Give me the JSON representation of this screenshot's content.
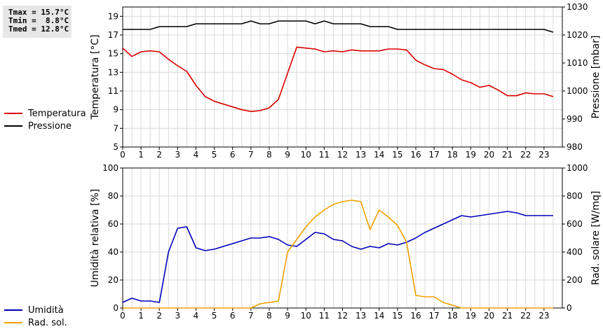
{
  "stats": {
    "tmax": "Tmax = 15.7°C",
    "tmin": "Tmin =  8.8°C",
    "tmed": "Tmed = 12.8°C"
  },
  "legend_top": [
    {
      "label": "Temperatura",
      "color": "#dd0000"
    },
    {
      "label": "Pressione",
      "color": "#000000"
    }
  ],
  "legend_bottom": [
    {
      "label": "Umidità",
      "color": "#0000bb"
    },
    {
      "label": "Rad. sol.",
      "color": "#f0a000"
    }
  ],
  "chart_data": [
    {
      "type": "line",
      "xlim": [
        0,
        24
      ],
      "xticks": [
        0,
        1,
        2,
        3,
        4,
        5,
        6,
        7,
        8,
        9,
        10,
        11,
        12,
        13,
        14,
        15,
        16,
        17,
        18,
        19,
        20,
        21,
        22,
        23
      ],
      "ylabel": "Temperatura [°C]",
      "ylim": [
        5,
        20
      ],
      "yticks": [
        5,
        7,
        9,
        11,
        13,
        15,
        17,
        19
      ],
      "y2label": "Pressione [mbar]",
      "y2lim": [
        980,
        1030
      ],
      "y2ticks": [
        980,
        990,
        1000,
        1010,
        1020,
        1030
      ],
      "grid": true,
      "series": [
        {
          "name": "Temperatura",
          "axis": "left",
          "color": "#dd0000",
          "x": [
            0,
            0.5,
            1,
            1.5,
            2,
            2.5,
            3,
            3.5,
            4,
            4.5,
            5,
            5.5,
            6,
            6.5,
            7,
            7.5,
            8,
            8.5,
            9,
            9.5,
            10,
            10.5,
            11,
            11.5,
            12,
            12.5,
            13,
            13.5,
            14,
            14.5,
            15,
            15.5,
            16,
            16.5,
            17,
            17.5,
            18,
            18.5,
            19,
            19.5,
            20,
            20.5,
            21,
            21.5,
            22,
            22.5,
            23,
            23.5
          ],
          "values": [
            15.6,
            14.7,
            15.2,
            15.3,
            15.2,
            14.4,
            13.7,
            13.1,
            11.6,
            10.4,
            9.9,
            9.6,
            9.3,
            9.0,
            8.8,
            8.9,
            9.2,
            10.1,
            12.9,
            15.7,
            15.6,
            15.5,
            15.2,
            15.3,
            15.2,
            15.4,
            15.3,
            15.3,
            15.3,
            15.5,
            15.5,
            15.4,
            14.3,
            13.8,
            13.4,
            13.3,
            12.8,
            12.2,
            11.9,
            11.4,
            11.6,
            11.1,
            10.5,
            10.5,
            10.8,
            10.7,
            10.7,
            10.4
          ]
        },
        {
          "name": "Pressione",
          "axis": "right",
          "color": "#000000",
          "x": [
            0,
            0.5,
            1,
            1.5,
            2,
            2.5,
            3,
            3.5,
            4,
            4.5,
            5,
            5.5,
            6,
            6.5,
            7,
            7.5,
            8,
            8.5,
            9,
            9.5,
            10,
            10.5,
            11,
            11.5,
            12,
            12.5,
            13,
            13.5,
            14,
            14.5,
            15,
            15.5,
            16,
            16.5,
            17,
            17.5,
            18,
            18.5,
            19,
            19.5,
            20,
            20.5,
            21,
            21.5,
            22,
            22.5,
            23,
            23.5
          ],
          "values": [
            1022,
            1022,
            1022,
            1022,
            1023,
            1023,
            1023,
            1023,
            1024,
            1024,
            1024,
            1024,
            1024,
            1024,
            1025,
            1024,
            1024,
            1025,
            1025,
            1025,
            1025,
            1024,
            1025,
            1024,
            1024,
            1024,
            1024,
            1023,
            1023,
            1023,
            1022,
            1022,
            1022,
            1022,
            1022,
            1022,
            1022,
            1022,
            1022,
            1022,
            1022,
            1022,
            1022,
            1022,
            1022,
            1022,
            1022,
            1021
          ]
        }
      ]
    },
    {
      "type": "line",
      "xlim": [
        0,
        24
      ],
      "xticks": [
        0,
        1,
        2,
        3,
        4,
        5,
        6,
        7,
        8,
        9,
        10,
        11,
        12,
        13,
        14,
        15,
        16,
        17,
        18,
        19,
        20,
        21,
        22,
        23
      ],
      "ylabel": "Umidità relativa [%]",
      "ylim": [
        0,
        100
      ],
      "yticks": [
        0,
        20,
        40,
        60,
        80,
        100
      ],
      "y2label": "Rad. solare [W/mq]",
      "y2lim": [
        0,
        1000
      ],
      "y2ticks": [
        0,
        200,
        400,
        600,
        800,
        1000
      ],
      "grid": true,
      "series": [
        {
          "name": "Umidità",
          "axis": "left",
          "color": "#0000bb",
          "x": [
            0,
            0.5,
            1,
            1.5,
            2,
            2.5,
            3,
            3.5,
            4,
            4.5,
            5,
            5.5,
            6,
            6.5,
            7,
            7.5,
            8,
            8.5,
            9,
            9.5,
            10,
            10.5,
            11,
            11.5,
            12,
            12.5,
            13,
            13.5,
            14,
            14.5,
            15,
            15.5,
            16,
            16.5,
            17,
            17.5,
            18,
            18.5,
            19,
            19.5,
            20,
            20.5,
            21,
            21.5,
            22,
            22.5,
            23,
            23.5
          ],
          "values": [
            4,
            7,
            5,
            5,
            4,
            40,
            57,
            58,
            43,
            41,
            42,
            44,
            46,
            48,
            50,
            50,
            51,
            49,
            45,
            44,
            49,
            54,
            53,
            49,
            48,
            44,
            42,
            44,
            43,
            46,
            45,
            47,
            50,
            54,
            57,
            60,
            63,
            66,
            65,
            66,
            67,
            68,
            69,
            68,
            66,
            66,
            66,
            66
          ]
        },
        {
          "name": "Rad. sol.",
          "axis": "right",
          "color": "#f0a000",
          "x": [
            0,
            1,
            2,
            3,
            4,
            5,
            6,
            6.5,
            7,
            7.5,
            8,
            8.5,
            9,
            9.5,
            10,
            10.5,
            11,
            11.5,
            12,
            12.5,
            13,
            13.5,
            14,
            14.5,
            15,
            15.5,
            16,
            16.5,
            17,
            17.5,
            18,
            18.5,
            19,
            20,
            21,
            22,
            23,
            23.5
          ],
          "values": [
            0,
            0,
            0,
            0,
            0,
            0,
            0,
            0,
            0,
            30,
            40,
            50,
            400,
            490,
            580,
            650,
            700,
            740,
            760,
            770,
            760,
            560,
            700,
            650,
            590,
            470,
            90,
            80,
            80,
            40,
            20,
            0,
            0,
            0,
            0,
            0,
            0,
            0
          ]
        }
      ]
    }
  ]
}
